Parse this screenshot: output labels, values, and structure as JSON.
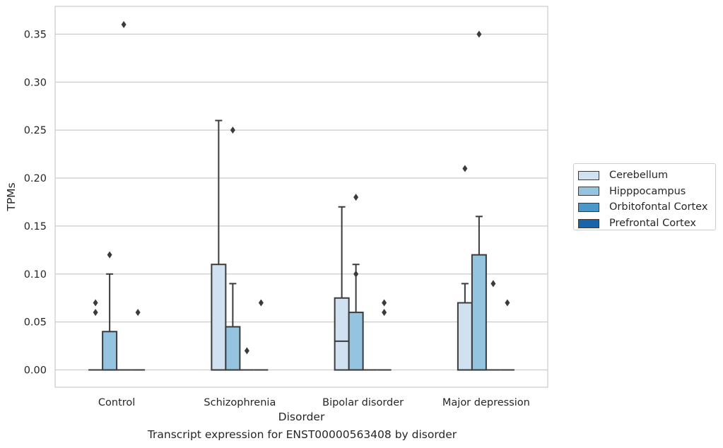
{
  "figure": {
    "caption": "Transcript expression for ENST00000563408 by disorder"
  },
  "chart_data": {
    "type": "box",
    "xlabel": "Disorder",
    "ylabel": "TPMs",
    "ylim": [
      -0.018,
      0.379
    ],
    "yticks": [
      0.0,
      0.05,
      0.1,
      0.15,
      0.2,
      0.25,
      0.3,
      0.35
    ],
    "ytick_labels": [
      "0.00",
      "0.05",
      "0.10",
      "0.15",
      "0.20",
      "0.25",
      "0.30",
      "0.35"
    ],
    "grid": true,
    "legend_position": "right",
    "categories": [
      "Control",
      "Schizophrenia",
      "Bipolar disorder",
      "Major depression"
    ],
    "series": [
      {
        "name": "Cerebellum",
        "color": "#d0e1f2",
        "boxes": [
          {
            "whislo": 0,
            "q1": 0,
            "med": 0,
            "q3": 0,
            "whishi": 0,
            "fliers": [
              0.06,
              0.07
            ]
          },
          {
            "whislo": 0,
            "q1": 0,
            "med": 0,
            "q3": 0.11,
            "whishi": 0.26,
            "fliers": []
          },
          {
            "whislo": 0,
            "q1": 0,
            "med": 0.03,
            "q3": 0.075,
            "whishi": 0.17,
            "fliers": []
          },
          {
            "whislo": 0,
            "q1": 0,
            "med": 0,
            "q3": 0.07,
            "whishi": 0.09,
            "fliers": [
              0.21
            ]
          }
        ]
      },
      {
        "name": "Hipppocampus",
        "color": "#94c4df",
        "boxes": [
          {
            "whislo": 0,
            "q1": 0,
            "med": 0,
            "q3": 0.04,
            "whishi": 0.1,
            "fliers": [
              0.12
            ]
          },
          {
            "whislo": 0,
            "q1": 0,
            "med": 0,
            "q3": 0.045,
            "whishi": 0.09,
            "fliers": [
              0.25
            ]
          },
          {
            "whislo": 0,
            "q1": 0,
            "med": 0,
            "q3": 0.06,
            "whishi": 0.11,
            "fliers": [
              0.1,
              0.18
            ]
          },
          {
            "whislo": 0,
            "q1": 0,
            "med": 0,
            "q3": 0.12,
            "whishi": 0.16,
            "fliers": [
              0.35
            ]
          }
        ]
      },
      {
        "name": "Orbitofontal Cortex",
        "color": "#4a98c9",
        "boxes": [
          {
            "whislo": 0,
            "q1": 0,
            "med": 0,
            "q3": 0,
            "whishi": 0,
            "fliers": [
              0.36
            ]
          },
          {
            "whislo": 0,
            "q1": 0,
            "med": 0,
            "q3": 0,
            "whishi": 0,
            "fliers": [
              0.02
            ]
          },
          {
            "whislo": 0,
            "q1": 0,
            "med": 0,
            "q3": 0,
            "whishi": 0,
            "fliers": []
          },
          {
            "whislo": 0,
            "q1": 0,
            "med": 0,
            "q3": 0,
            "whishi": 0,
            "fliers": [
              0.09
            ]
          }
        ]
      },
      {
        "name": "Prefrontal Cortex",
        "color": "#1764ab",
        "boxes": [
          {
            "whislo": 0,
            "q1": 0,
            "med": 0,
            "q3": 0,
            "whishi": 0,
            "fliers": [
              0.06
            ]
          },
          {
            "whislo": 0,
            "q1": 0,
            "med": 0,
            "q3": 0,
            "whishi": 0,
            "fliers": [
              0.07
            ]
          },
          {
            "whislo": 0,
            "q1": 0,
            "med": 0,
            "q3": 0,
            "whishi": 0,
            "fliers": [
              0.06,
              0.07
            ]
          },
          {
            "whislo": 0,
            "q1": 0,
            "med": 0,
            "q3": 0,
            "whishi": 0,
            "fliers": [
              0.07
            ]
          }
        ]
      }
    ]
  }
}
